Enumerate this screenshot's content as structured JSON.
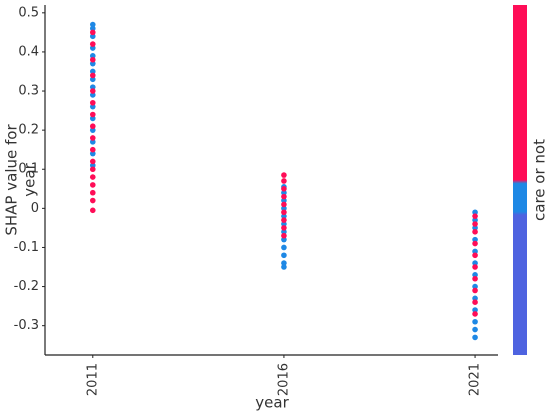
{
  "chart_data": {
    "type": "scatter",
    "xlabel": "year",
    "ylabel_lines": [
      "SHAP value for",
      "year"
    ],
    "colorbar_label": "care or not",
    "xlim": [
      2009.75,
      2021.6
    ],
    "xticks": [
      2011,
      2016,
      2021
    ],
    "ylim": [
      -0.375,
      0.52
    ],
    "yticks": [
      -0.3,
      -0.2,
      -0.1,
      0.0,
      0.1,
      0.2,
      0.3,
      0.4,
      0.5
    ],
    "series": [
      {
        "color": "#1e88e5",
        "x": [
          2011,
          2011,
          2011,
          2011,
          2011,
          2011,
          2011,
          2011,
          2011,
          2011,
          2011,
          2011,
          2011,
          2011,
          2011,
          2011,
          2016,
          2016,
          2016,
          2016,
          2016,
          2016,
          2016,
          2016,
          2016,
          2016,
          2016,
          2016,
          2021,
          2021,
          2021,
          2021,
          2021,
          2021,
          2021,
          2021,
          2021,
          2021,
          2021,
          2021,
          2021
        ],
        "values": [
          0.47,
          0.46,
          0.44,
          0.41,
          0.39,
          0.37,
          0.35,
          0.33,
          0.31,
          0.29,
          0.26,
          0.23,
          0.2,
          0.17,
          0.14,
          0.11,
          0.055,
          0.04,
          0.02,
          0,
          -0.02,
          -0.04,
          -0.06,
          -0.08,
          -0.1,
          -0.12,
          -0.14,
          -0.15,
          -0.01,
          -0.03,
          -0.05,
          -0.08,
          -0.11,
          -0.14,
          -0.17,
          -0.2,
          -0.23,
          -0.26,
          -0.29,
          -0.31,
          -0.33
        ]
      },
      {
        "color": "#ff0d57",
        "x": [
          2011,
          2011,
          2011,
          2011,
          2011,
          2011,
          2011,
          2011,
          2011,
          2011,
          2011,
          2011,
          2011,
          2011,
          2011,
          2011,
          2011,
          2016,
          2016,
          2016,
          2016,
          2016,
          2016,
          2016,
          2016,
          2016,
          2021,
          2021,
          2021,
          2021,
          2021,
          2021,
          2021,
          2021,
          2021,
          2021
        ],
        "values": [
          0.45,
          0.42,
          0.38,
          0.34,
          0.3,
          0.27,
          0.24,
          0.21,
          0.18,
          0.15,
          0.12,
          0.1,
          0.08,
          0.06,
          0.04,
          0.02,
          -0.005,
          0.085,
          0.07,
          0.05,
          0.03,
          0.01,
          -0.01,
          -0.03,
          -0.05,
          -0.07,
          -0.02,
          -0.04,
          -0.06,
          -0.09,
          -0.12,
          -0.15,
          -0.18,
          -0.21,
          -0.24,
          -0.27
        ]
      }
    ]
  }
}
